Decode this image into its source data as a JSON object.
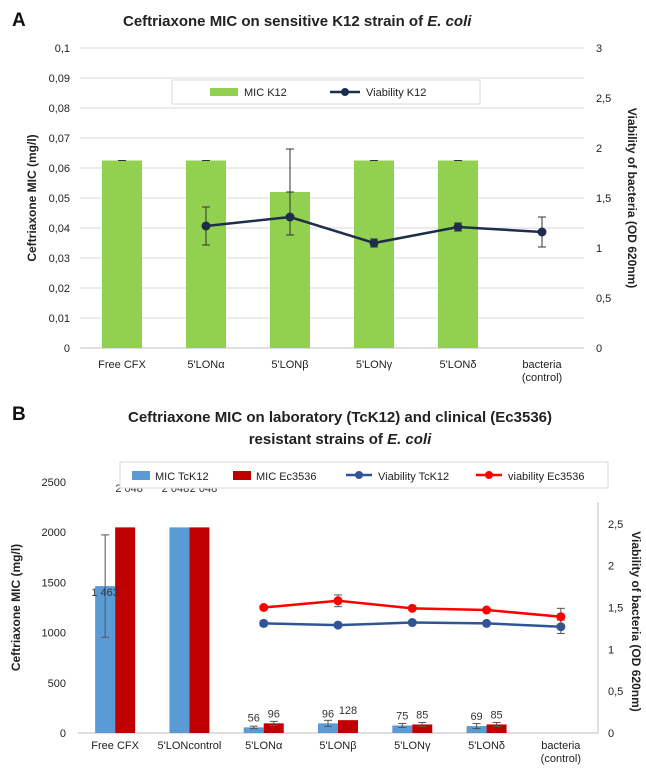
{
  "chart_data": [
    {
      "panel": "A",
      "type": "bar",
      "title": "Ceftriaxone MIC on sensitive K12 strain of ",
      "title_italic": "E. coli",
      "categories": [
        "Free CFX",
        "5'LONα",
        "5'LONβ",
        "5'LONγ",
        "5'LONδ",
        "bacteria|(control)"
      ],
      "y_left": {
        "label": "Ceftriaxone MIC (mg/l)",
        "range": [
          0,
          0.1
        ],
        "ticks": [
          "0",
          "0,01",
          "0,02",
          "0,03",
          "0,04",
          "0,05",
          "0,06",
          "0,07",
          "0,08",
          "0,09",
          "0,1"
        ]
      },
      "y_right": {
        "label": "Viability of bacteria (OD 620nm)",
        "range": [
          0,
          3
        ],
        "ticks": [
          "0",
          "0,5",
          "1",
          "1,5",
          "2",
          "2,5",
          "3"
        ]
      },
      "series": [
        {
          "name": "MIC K12",
          "kind": "bar",
          "axis": "left",
          "color": "#92d050",
          "values": [
            0.0625,
            0.0625,
            0.052,
            0.0625,
            0.0625,
            null
          ],
          "error": [
            0,
            0,
            0,
            0,
            0,
            null
          ]
        },
        {
          "name": "Viability K12",
          "kind": "line",
          "axis": "right",
          "color": "#1f2d4d",
          "values": [
            null,
            1.22,
            1.31,
            1.05,
            1.21,
            1.16
          ],
          "error": [
            null,
            0.19,
            0.68,
            0.04,
            0.04,
            0.15
          ],
          "error_low": [
            null,
            0.19,
            0.18,
            0.04,
            0.04,
            0.15
          ]
        }
      ],
      "grid": true,
      "legend": "top"
    },
    {
      "panel": "B",
      "type": "bar",
      "title_lines": [
        "Ceftriaxone MIC on laboratory (TcK12) and clinical (Ec3536)",
        "resistant strains of "
      ],
      "title_italic": "E. coli",
      "categories": [
        "Free CFX",
        "5'LONcontrol",
        "5'LONα",
        "5'LONβ",
        "5'LONγ",
        "5'LONδ",
        "bacteria|(control)"
      ],
      "y_left": {
        "label": "Ceftriaxone MIC (mg/l)",
        "range": [
          0,
          2500
        ],
        "ticks": [
          "0",
          "500",
          "1000",
          "1500",
          "2000",
          "2500"
        ]
      },
      "y_right": {
        "label": "Viability of bacteria (OD 620nm)",
        "range": [
          0,
          3
        ],
        "ticks": [
          "0",
          "0,5",
          "1",
          "1,5",
          "2",
          "2,5"
        ]
      },
      "series": [
        {
          "name": "MIC TcK12",
          "kind": "bar",
          "axis": "left",
          "color": "#5b9bd5",
          "values": [
            1463,
            2048,
            56,
            96,
            75,
            69,
            null
          ],
          "labels": [
            "1 463",
            "2 048",
            "56",
            "96",
            "75",
            "69",
            ""
          ],
          "error": [
            510,
            0,
            12,
            30,
            20,
            25,
            null
          ]
        },
        {
          "name": "MIC Ec3536",
          "kind": "bar",
          "axis": "left",
          "color": "#c00000",
          "values": [
            2048,
            2048,
            96,
            128,
            85,
            85,
            null
          ],
          "labels": [
            "2 048",
            "2 048",
            "96",
            "128",
            "85",
            "85",
            ""
          ],
          "error": [
            0,
            0,
            20,
            0,
            20,
            20,
            null
          ]
        },
        {
          "name": "Viability TcK12",
          "kind": "line",
          "axis": "right",
          "color": "#2f5597",
          "values": [
            null,
            null,
            1.31,
            1.29,
            1.32,
            1.31,
            1.27
          ],
          "error": [
            null,
            null,
            0.03,
            0.02,
            0.02,
            0.02,
            0.08
          ]
        },
        {
          "name": "viability Ec3536",
          "kind": "line",
          "axis": "right",
          "color": "#ff0000",
          "values": [
            null,
            null,
            1.5,
            1.58,
            1.49,
            1.47,
            1.39
          ],
          "error": [
            null,
            null,
            0.02,
            0.07,
            0.02,
            0.02,
            0.1
          ]
        }
      ],
      "grid": false,
      "legend": "top"
    }
  ]
}
